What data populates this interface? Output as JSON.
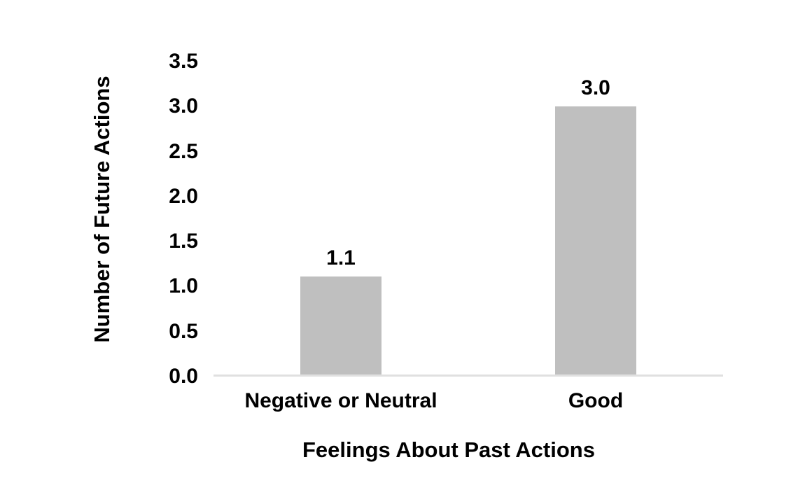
{
  "chart_data": {
    "type": "bar",
    "title": "",
    "categories": [
      "Negative or Neutral",
      "Good"
    ],
    "values": [
      1.1,
      3.0
    ],
    "value_labels": [
      "1.1",
      "3.0"
    ],
    "xlabel": "Feelings About Past Actions",
    "ylabel": "Number of Future Actions",
    "ylim": [
      0,
      3.5
    ],
    "ytick_labels": [
      "3.5",
      "3.0",
      "2.5",
      "2.0",
      "1.5",
      "1.0",
      "0.5",
      "0.0"
    ],
    "grid": "off",
    "legend": "none",
    "bar_color": "#BFBFBF",
    "axis_line_color": "#E0E0E0",
    "text_color": "#000000",
    "background_color": "#FFFFFF"
  }
}
